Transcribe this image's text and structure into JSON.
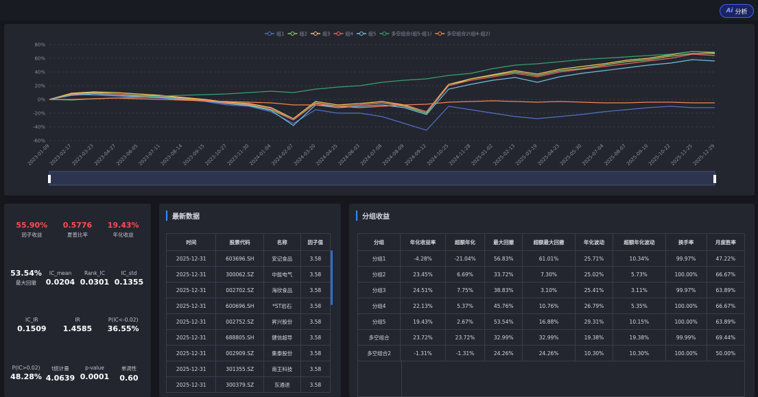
{
  "ai_button": {
    "icon": "Ai",
    "label": "分析"
  },
  "chart_data": {
    "type": "line",
    "legend": "top",
    "grid": true,
    "categories": [
      "2023-01-09",
      "2023-02-17",
      "2023-03-23",
      "2023-04-27",
      "2023-06-05",
      "2023-07-11",
      "2023-08-14",
      "2023-09-15",
      "2023-10-27",
      "2023-11-30",
      "2024-01-04",
      "2024-02-07",
      "2024-03-20",
      "2024-04-25",
      "2024-06-03",
      "2024-07-08",
      "2024-08-09",
      "2024-09-12",
      "2024-10-25",
      "2024-11-28",
      "2025-01-02",
      "2025-02-13",
      "2025-03-19",
      "2025-04-23",
      "2025-05-30",
      "2025-07-04",
      "2025-08-07",
      "2025-09-10",
      "2025-10-22",
      "2025-11-25",
      "2025-12-29"
    ],
    "ylim": [
      -60,
      80
    ],
    "yticks": [
      {
        "value": -60,
        "label": "-60%"
      },
      {
        "value": -40,
        "label": "-40%"
      },
      {
        "value": -20,
        "label": "-20%"
      },
      {
        "value": 0,
        "label": "0%"
      },
      {
        "value": 20,
        "label": "20%"
      },
      {
        "value": 40,
        "label": "40%"
      },
      {
        "value": 60,
        "label": "60%"
      },
      {
        "value": 80,
        "label": "80%"
      }
    ],
    "series": [
      {
        "name": "组1",
        "color": "#5470c6",
        "values": [
          0,
          8,
          6,
          5,
          3,
          2,
          0,
          -3,
          -8,
          -10,
          -18,
          -35,
          -15,
          -20,
          -20,
          -25,
          -35,
          -45,
          -10,
          -15,
          -20,
          -25,
          -28,
          -25,
          -22,
          -18,
          -15,
          -12,
          -10,
          -12,
          -12
        ]
      },
      {
        "name": "组2",
        "color": "#91cc75",
        "values": [
          0,
          8,
          10,
          8,
          6,
          5,
          2,
          0,
          -5,
          -8,
          -15,
          -30,
          -5,
          -10,
          -8,
          -5,
          -10,
          -20,
          20,
          30,
          35,
          40,
          35,
          42,
          45,
          50,
          55,
          58,
          63,
          67,
          67
        ]
      },
      {
        "name": "组3",
        "color": "#fac858",
        "values": [
          0,
          9,
          11,
          10,
          8,
          6,
          3,
          0,
          -4,
          -6,
          -12,
          -28,
          -3,
          -8,
          -6,
          -3,
          -8,
          -18,
          22,
          30,
          36,
          42,
          37,
          44,
          48,
          52,
          57,
          60,
          65,
          70,
          68
        ]
      },
      {
        "name": "组4",
        "color": "#ee6666",
        "values": [
          0,
          7,
          9,
          8,
          5,
          4,
          1,
          -1,
          -5,
          -7,
          -13,
          -30,
          -6,
          -10,
          -8,
          -5,
          -9,
          -18,
          20,
          28,
          33,
          38,
          33,
          40,
          44,
          48,
          52,
          56,
          60,
          66,
          64
        ]
      },
      {
        "name": "组5",
        "color": "#73c0de",
        "values": [
          0,
          6,
          8,
          6,
          4,
          3,
          0,
          -2,
          -6,
          -9,
          -16,
          -38,
          -8,
          -12,
          -10,
          -8,
          -12,
          -22,
          15,
          22,
          28,
          32,
          25,
          33,
          38,
          42,
          46,
          50,
          53,
          58,
          56
        ]
      },
      {
        "name": "多空组合(组5-组1)",
        "color": "#3ba272",
        "values": [
          0,
          -1,
          1,
          2,
          3,
          5,
          6,
          7,
          8,
          10,
          12,
          10,
          15,
          18,
          20,
          25,
          28,
          30,
          35,
          38,
          45,
          50,
          52,
          55,
          58,
          60,
          62,
          64,
          66,
          70,
          69
        ]
      },
      {
        "name": "多空组合2(组4-组2)",
        "color": "#fc8452",
        "values": [
          0,
          0,
          1,
          2,
          1,
          0,
          -1,
          -2,
          -3,
          -4,
          -5,
          -8,
          -8,
          -10,
          -12,
          -10,
          -8,
          -7,
          -4,
          -3,
          -2,
          -3,
          -4,
          -3,
          -4,
          -5,
          -5,
          -4,
          -4,
          -5,
          -5
        ]
      }
    ]
  },
  "stats": {
    "rows": [
      [
        {
          "value": "55.90%",
          "label": "因子收益"
        },
        {
          "value": "0.5776",
          "label": "夏普比率"
        },
        {
          "value": "19.43%",
          "label": "年化收益"
        }
      ],
      [
        {
          "value": "53.54%",
          "label": "最大回撤"
        },
        {
          "label": "IC_mean",
          "value": "0.0204"
        },
        {
          "label": "Rank_IC",
          "value": "0.0301"
        },
        {
          "label": "IC_std",
          "value": "0.1355"
        }
      ],
      [
        {
          "label": "IC_IR",
          "value": "0.1509"
        },
        {
          "label": "IR",
          "value": "1.4585"
        },
        {
          "label": "P(IC<-0.02)",
          "value": "36.55%"
        }
      ],
      [
        {
          "label": "P(IC>0.02)",
          "value": "48.28%"
        },
        {
          "label": "t统计量",
          "value": "4.0639"
        },
        {
          "label": "p-value",
          "value": "0.0001"
        },
        {
          "label": "单调性",
          "value": "0.60"
        }
      ]
    ]
  },
  "latest": {
    "title": "最新数据",
    "columns": [
      "时间",
      "股票代码",
      "名称",
      "因子值"
    ],
    "rows": [
      [
        "2025-12-31",
        "603696.SH",
        "安记食品",
        "3.58"
      ],
      [
        "2025-12-31",
        "300062.SZ",
        "中能电气",
        "3.58"
      ],
      [
        "2025-12-31",
        "002702.SZ",
        "海欣食品",
        "3.58"
      ],
      [
        "2025-12-31",
        "600696.SH",
        "*ST岩石",
        "3.58"
      ],
      [
        "2025-12-31",
        "002752.SZ",
        "昇兴股份",
        "3.58"
      ],
      [
        "2025-12-31",
        "688805.SH",
        "健信超导",
        "3.58"
      ],
      [
        "2025-12-31",
        "002909.SZ",
        "集泰股份",
        "3.58"
      ],
      [
        "2025-12-31",
        "301355.SZ",
        "南王科技",
        "3.58"
      ],
      [
        "2025-12-31",
        "300379.SZ",
        "东通退",
        "3.58"
      ]
    ]
  },
  "groups": {
    "title": "分组收益",
    "columns": [
      "分组",
      "年化收益率",
      "超额年化",
      "最大回撤",
      "超额最大回撤",
      "年化波动",
      "超额年化波动",
      "换手率",
      "月度胜率"
    ],
    "rows": [
      [
        "分组1",
        "-4.28%",
        "-21.04%",
        "56.83%",
        "61.01%",
        "25.71%",
        "10.34%",
        "99.97%",
        "47.22%"
      ],
      [
        "分组2",
        "23.45%",
        "6.69%",
        "33.72%",
        "7.30%",
        "25.02%",
        "5.73%",
        "100.00%",
        "66.67%"
      ],
      [
        "分组3",
        "24.51%",
        "7.75%",
        "38.83%",
        "3.10%",
        "25.41%",
        "3.11%",
        "99.97%",
        "63.89%"
      ],
      [
        "分组4",
        "22.13%",
        "5.37%",
        "45.76%",
        "10.76%",
        "26.79%",
        "5.35%",
        "100.00%",
        "66.67%"
      ],
      [
        "分组5",
        "19.43%",
        "2.67%",
        "53.54%",
        "16.88%",
        "29.31%",
        "10.15%",
        "100.00%",
        "63.89%"
      ],
      [
        "多空组合",
        "23.72%",
        "23.72%",
        "32.99%",
        "32.99%",
        "19.38%",
        "19.38%",
        "99.99%",
        "69.44%"
      ],
      [
        "多空组合2",
        "-1.31%",
        "-1.31%",
        "24.26%",
        "24.26%",
        "10.30%",
        "10.30%",
        "100.00%",
        "50.00%"
      ]
    ]
  }
}
